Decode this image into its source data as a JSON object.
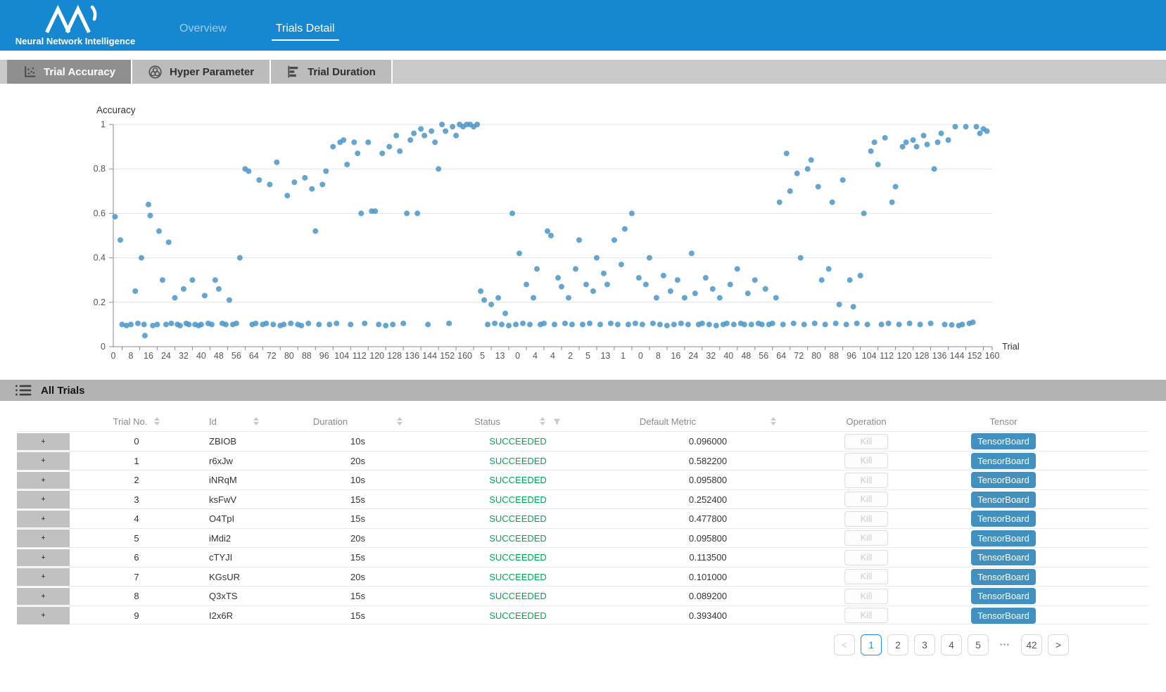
{
  "header": {
    "brand": "Neural Network Intelligence",
    "nav": [
      {
        "label": "Overview",
        "active": false
      },
      {
        "label": "Trials Detail",
        "active": true
      }
    ]
  },
  "tabs": [
    {
      "label": "Trial Accuracy",
      "icon": "scatter-icon",
      "active": true
    },
    {
      "label": "Hyper Parameter",
      "icon": "circles-icon",
      "active": false
    },
    {
      "label": "Trial Duration",
      "icon": "bars-icon",
      "active": false
    }
  ],
  "chart_data": {
    "type": "scatter",
    "title": "Accuracy",
    "xlabel": "Trial",
    "ylabel": "Accuracy",
    "ylim": [
      0,
      1
    ],
    "grid": true,
    "point_color": "#4a96c8",
    "y_tick_labels": [
      "1",
      "0.8",
      "0.6",
      "0.4",
      "0.2",
      "0"
    ],
    "x_tick_labels": [
      "0",
      "8",
      "16",
      "24",
      "32",
      "40",
      "48",
      "56",
      "64",
      "72",
      "80",
      "88",
      "96",
      "104",
      "112",
      "120",
      "128",
      "136",
      "144",
      "152",
      "160",
      "5",
      "13",
      "0",
      "4",
      "4",
      "2",
      "5",
      "13",
      "1",
      "0",
      "8",
      "16",
      "24",
      "32",
      "40",
      "48",
      "56",
      "64",
      "72",
      "80",
      "88",
      "96",
      "104",
      "112",
      "120",
      "128",
      "136",
      "144",
      "152",
      "160"
    ],
    "points": [
      [
        0.2,
        0.585
      ],
      [
        0.8,
        0.48
      ],
      [
        1,
        0.1
      ],
      [
        1.5,
        0.095
      ],
      [
        2,
        0.1
      ],
      [
        2.5,
        0.25
      ],
      [
        2.8,
        0.105
      ],
      [
        3.2,
        0.4
      ],
      [
        3.5,
        0.1
      ],
      [
        3.6,
        0.05
      ],
      [
        4,
        0.64
      ],
      [
        4.2,
        0.59
      ],
      [
        4.5,
        0.095
      ],
      [
        5,
        0.1
      ],
      [
        5.2,
        0.52
      ],
      [
        5.6,
        0.3
      ],
      [
        6,
        0.1
      ],
      [
        6.3,
        0.47
      ],
      [
        6.6,
        0.105
      ],
      [
        7,
        0.22
      ],
      [
        7.3,
        0.1
      ],
      [
        7.6,
        0.095
      ],
      [
        8,
        0.26
      ],
      [
        8.3,
        0.105
      ],
      [
        8.6,
        0.1
      ],
      [
        9,
        0.3
      ],
      [
        9.3,
        0.1
      ],
      [
        9.7,
        0.095
      ],
      [
        10,
        0.1
      ],
      [
        10.4,
        0.23
      ],
      [
        10.8,
        0.105
      ],
      [
        11.2,
        0.1
      ],
      [
        11.6,
        0.3
      ],
      [
        12,
        0.26
      ],
      [
        12.4,
        0.105
      ],
      [
        12.8,
        0.1
      ],
      [
        13.2,
        0.21
      ],
      [
        13.6,
        0.1
      ],
      [
        14,
        0.105
      ],
      [
        14.4,
        0.4
      ],
      [
        15,
        0.8
      ],
      [
        15.4,
        0.79
      ],
      [
        15.8,
        0.1
      ],
      [
        16.2,
        0.105
      ],
      [
        16.6,
        0.75
      ],
      [
        17,
        0.1
      ],
      [
        17.4,
        0.105
      ],
      [
        17.8,
        0.73
      ],
      [
        18.2,
        0.1
      ],
      [
        18.6,
        0.83
      ],
      [
        19,
        0.095
      ],
      [
        19.4,
        0.1
      ],
      [
        19.8,
        0.68
      ],
      [
        20.2,
        0.105
      ],
      [
        20.6,
        0.74
      ],
      [
        21,
        0.1
      ],
      [
        21.4,
        0.095
      ],
      [
        21.8,
        0.76
      ],
      [
        22.2,
        0.105
      ],
      [
        22.6,
        0.71
      ],
      [
        23,
        0.52
      ],
      [
        23.4,
        0.1
      ],
      [
        23.8,
        0.73
      ],
      [
        24.2,
        0.79
      ],
      [
        24.6,
        0.1
      ],
      [
        25,
        0.9
      ],
      [
        25.4,
        0.105
      ],
      [
        25.8,
        0.92
      ],
      [
        26.2,
        0.93
      ],
      [
        26.6,
        0.82
      ],
      [
        27,
        0.1
      ],
      [
        27.4,
        0.92
      ],
      [
        27.8,
        0.87
      ],
      [
        28.2,
        0.6
      ],
      [
        28.6,
        0.105
      ],
      [
        29,
        0.92
      ],
      [
        29.4,
        0.61
      ],
      [
        29.8,
        0.61
      ],
      [
        30.2,
        0.1
      ],
      [
        30.6,
        0.87
      ],
      [
        31,
        0.095
      ],
      [
        31.4,
        0.9
      ],
      [
        31.8,
        0.1
      ],
      [
        32.2,
        0.95
      ],
      [
        32.6,
        0.88
      ],
      [
        33,
        0.105
      ],
      [
        33.4,
        0.6
      ],
      [
        33.8,
        0.93
      ],
      [
        34.2,
        0.96
      ],
      [
        34.6,
        0.6
      ],
      [
        35,
        0.98
      ],
      [
        35.4,
        0.95
      ],
      [
        35.8,
        0.1
      ],
      [
        36.2,
        0.97
      ],
      [
        36.6,
        0.92
      ],
      [
        37,
        0.8
      ],
      [
        37.4,
        1
      ],
      [
        37.8,
        0.97
      ],
      [
        38.2,
        0.105
      ],
      [
        38.6,
        0.99
      ],
      [
        39,
        0.95
      ],
      [
        39.4,
        1
      ],
      [
        39.8,
        0.99
      ],
      [
        40.2,
        1
      ],
      [
        40.6,
        1
      ],
      [
        41,
        0.99
      ],
      [
        41.4,
        1
      ],
      [
        41.8,
        0.25
      ],
      [
        42.2,
        0.21
      ],
      [
        42.6,
        0.1
      ],
      [
        43,
        0.19
      ],
      [
        43.4,
        0.105
      ],
      [
        43.8,
        0.22
      ],
      [
        44.2,
        0.1
      ],
      [
        44.6,
        0.15
      ],
      [
        45,
        0.095
      ],
      [
        45.4,
        0.6
      ],
      [
        45.8,
        0.1
      ],
      [
        46.2,
        0.42
      ],
      [
        46.6,
        0.105
      ],
      [
        47,
        0.28
      ],
      [
        47.4,
        0.1
      ],
      [
        47.8,
        0.22
      ],
      [
        48.2,
        0.35
      ],
      [
        48.6,
        0.1
      ],
      [
        49,
        0.105
      ],
      [
        49.4,
        0.52
      ],
      [
        49.8,
        0.5
      ],
      [
        50.2,
        0.1
      ],
      [
        50.6,
        0.31
      ],
      [
        51,
        0.27
      ],
      [
        51.4,
        0.105
      ],
      [
        51.8,
        0.22
      ],
      [
        52.2,
        0.1
      ],
      [
        52.6,
        0.35
      ],
      [
        53,
        0.48
      ],
      [
        53.4,
        0.1
      ],
      [
        53.8,
        0.28
      ],
      [
        54.2,
        0.105
      ],
      [
        54.6,
        0.25
      ],
      [
        55,
        0.4
      ],
      [
        55.4,
        0.1
      ],
      [
        55.8,
        0.33
      ],
      [
        56.2,
        0.28
      ],
      [
        56.6,
        0.105
      ],
      [
        57,
        0.48
      ],
      [
        57.4,
        0.1
      ],
      [
        57.8,
        0.37
      ],
      [
        58.2,
        0.53
      ],
      [
        58.6,
        0.1
      ],
      [
        59,
        0.6
      ],
      [
        59.4,
        0.105
      ],
      [
        59.8,
        0.31
      ],
      [
        60.2,
        0.1
      ],
      [
        60.6,
        0.28
      ],
      [
        61,
        0.4
      ],
      [
        61.4,
        0.105
      ],
      [
        61.8,
        0.22
      ],
      [
        62.2,
        0.1
      ],
      [
        62.6,
        0.32
      ],
      [
        63,
        0.095
      ],
      [
        63.4,
        0.25
      ],
      [
        63.8,
        0.1
      ],
      [
        64.2,
        0.3
      ],
      [
        64.6,
        0.105
      ],
      [
        65,
        0.22
      ],
      [
        65.4,
        0.1
      ],
      [
        65.8,
        0.42
      ],
      [
        66.2,
        0.24
      ],
      [
        66.6,
        0.1
      ],
      [
        67,
        0.105
      ],
      [
        67.4,
        0.31
      ],
      [
        67.8,
        0.1
      ],
      [
        68.2,
        0.26
      ],
      [
        68.6,
        0.095
      ],
      [
        69,
        0.22
      ],
      [
        69.4,
        0.1
      ],
      [
        69.8,
        0.105
      ],
      [
        70.2,
        0.28
      ],
      [
        70.6,
        0.1
      ],
      [
        71,
        0.35
      ],
      [
        71.4,
        0.105
      ],
      [
        71.8,
        0.1
      ],
      [
        72.2,
        0.24
      ],
      [
        72.6,
        0.1
      ],
      [
        73,
        0.3
      ],
      [
        73.4,
        0.105
      ],
      [
        73.8,
        0.1
      ],
      [
        74.2,
        0.26
      ],
      [
        74.6,
        0.1
      ],
      [
        75,
        0.105
      ],
      [
        75.4,
        0.22
      ],
      [
        75.8,
        0.65
      ],
      [
        76.2,
        0.1
      ],
      [
        76.6,
        0.87
      ],
      [
        77,
        0.7
      ],
      [
        77.4,
        0.105
      ],
      [
        77.8,
        0.78
      ],
      [
        78.2,
        0.4
      ],
      [
        78.6,
        0.1
      ],
      [
        79,
        0.8
      ],
      [
        79.4,
        0.84
      ],
      [
        79.8,
        0.105
      ],
      [
        80.2,
        0.72
      ],
      [
        80.6,
        0.3
      ],
      [
        81,
        0.1
      ],
      [
        81.4,
        0.35
      ],
      [
        81.8,
        0.65
      ],
      [
        82.2,
        0.105
      ],
      [
        82.6,
        0.19
      ],
      [
        83,
        0.75
      ],
      [
        83.4,
        0.1
      ],
      [
        83.8,
        0.3
      ],
      [
        84.2,
        0.18
      ],
      [
        84.6,
        0.105
      ],
      [
        85,
        0.32
      ],
      [
        85.4,
        0.6
      ],
      [
        85.8,
        0.1
      ],
      [
        86.2,
        0.88
      ],
      [
        86.6,
        0.92
      ],
      [
        87,
        0.82
      ],
      [
        87.4,
        0.1
      ],
      [
        87.8,
        0.94
      ],
      [
        88.2,
        0.105
      ],
      [
        88.6,
        0.65
      ],
      [
        89,
        0.72
      ],
      [
        89.4,
        0.1
      ],
      [
        89.8,
        0.9
      ],
      [
        90.2,
        0.92
      ],
      [
        90.6,
        0.105
      ],
      [
        91,
        0.93
      ],
      [
        91.4,
        0.9
      ],
      [
        91.8,
        0.1
      ],
      [
        92.2,
        0.95
      ],
      [
        92.6,
        0.91
      ],
      [
        93,
        0.105
      ],
      [
        93.4,
        0.8
      ],
      [
        93.8,
        0.92
      ],
      [
        94.2,
        0.96
      ],
      [
        94.6,
        0.1
      ],
      [
        95,
        0.93
      ],
      [
        95.4,
        0.098
      ],
      [
        95.8,
        0.99
      ],
      [
        96.2,
        0.095
      ],
      [
        96.6,
        0.1
      ],
      [
        97,
        0.99
      ],
      [
        97.4,
        0.105
      ],
      [
        97.8,
        0.11
      ],
      [
        98.2,
        0.99
      ],
      [
        98.6,
        0.96
      ],
      [
        99,
        0.98
      ],
      [
        99.4,
        0.97
      ]
    ]
  },
  "table": {
    "section_title": "All Trials",
    "columns": [
      "Trial No.",
      "Id",
      "Duration",
      "Status",
      "Default Metric",
      "Operation",
      "Tensor"
    ],
    "expander_symbol": "+",
    "kill_label": "Kill",
    "tensorboard_label": "TensorBoard",
    "rows": [
      {
        "trial_no": "0",
        "id": "ZBIOB",
        "duration": "10s",
        "status": "SUCCEEDED",
        "default_metric": "0.096000"
      },
      {
        "trial_no": "1",
        "id": "r6xJw",
        "duration": "20s",
        "status": "SUCCEEDED",
        "default_metric": "0.582200"
      },
      {
        "trial_no": "2",
        "id": "iNRqM",
        "duration": "10s",
        "status": "SUCCEEDED",
        "default_metric": "0.095800"
      },
      {
        "trial_no": "3",
        "id": "ksFwV",
        "duration": "15s",
        "status": "SUCCEEDED",
        "default_metric": "0.252400"
      },
      {
        "trial_no": "4",
        "id": "O4TpI",
        "duration": "15s",
        "status": "SUCCEEDED",
        "default_metric": "0.477800"
      },
      {
        "trial_no": "5",
        "id": "iMdi2",
        "duration": "20s",
        "status": "SUCCEEDED",
        "default_metric": "0.095800"
      },
      {
        "trial_no": "6",
        "id": "cTYJI",
        "duration": "15s",
        "status": "SUCCEEDED",
        "default_metric": "0.113500"
      },
      {
        "trial_no": "7",
        "id": "KGsUR",
        "duration": "20s",
        "status": "SUCCEEDED",
        "default_metric": "0.101000"
      },
      {
        "trial_no": "8",
        "id": "Q3xTS",
        "duration": "15s",
        "status": "SUCCEEDED",
        "default_metric": "0.089200"
      },
      {
        "trial_no": "9",
        "id": "I2x6R",
        "duration": "15s",
        "status": "SUCCEEDED",
        "default_metric": "0.393400"
      }
    ]
  },
  "pagination": {
    "prev": "<",
    "pages": [
      "1",
      "2",
      "3",
      "4",
      "5"
    ],
    "current": "1",
    "ellipsis": "•••",
    "last_page": "42",
    "next": ">"
  },
  "colors": {
    "header_blue": "#1588d1",
    "point_blue": "#4a96c8",
    "succeeded_green": "#00a854",
    "tensorboard_blue": "#4190c0",
    "pagination_active_blue": "#1890ff"
  }
}
